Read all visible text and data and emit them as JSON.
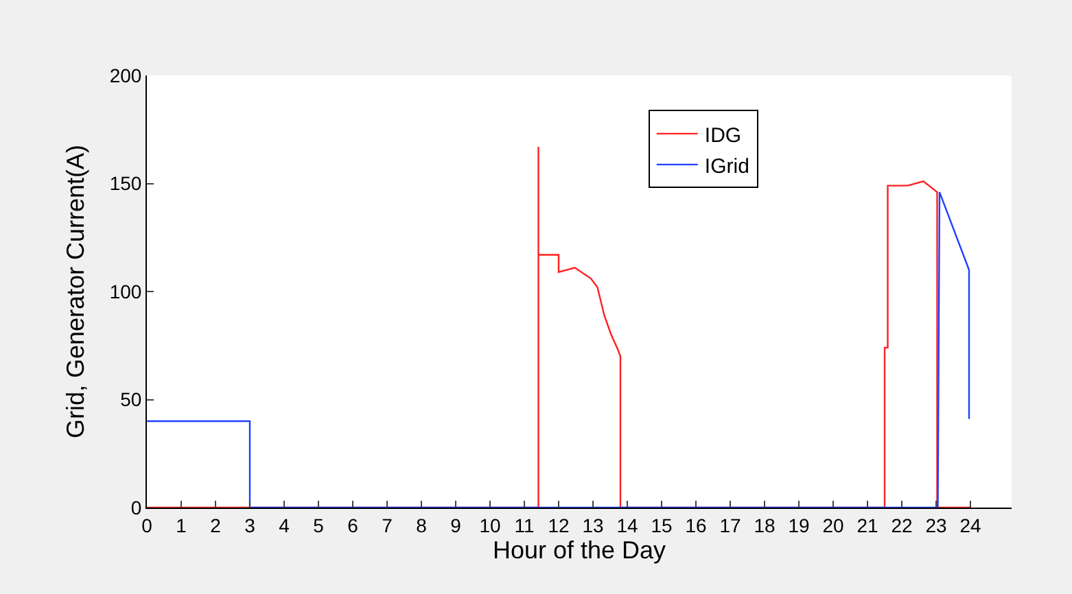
{
  "chart_data": {
    "type": "line",
    "xlabel": "Hour of the Day",
    "ylabel": "Grid, Generator Current(A)",
    "xlim": [
      0,
      25.2
    ],
    "xticks": [
      0,
      1,
      2,
      3,
      4,
      5,
      6,
      7,
      8,
      9,
      10,
      11,
      12,
      13,
      14,
      15,
      16,
      17,
      18,
      19,
      20,
      21,
      22,
      23,
      24
    ],
    "ylim": [
      0,
      200
    ],
    "yticks": [
      0,
      50,
      100,
      150,
      200
    ],
    "grid": false,
    "legend": "top right",
    "marker": "none",
    "line_style": "solid",
    "series": [
      {
        "name": "IDG",
        "color": "#ff2020",
        "x": [
          0,
          11.41,
          11.41,
          11.41,
          12.0,
          12.0,
          12.47,
          12.94,
          13.13,
          13.33,
          13.53,
          13.73,
          13.8,
          13.8,
          21.5,
          21.5,
          21.59,
          21.59,
          22.17,
          22.63,
          23.03,
          23.03,
          24
        ],
        "values": [
          0,
          0,
          167,
          117,
          117,
          109,
          111,
          106,
          102,
          89,
          80,
          73,
          70,
          0,
          0,
          74,
          74,
          149,
          149,
          151,
          146,
          0,
          0
        ]
      },
      {
        "name": "IGrid",
        "color": "#2040ff",
        "x": [
          0,
          3,
          3,
          23.05,
          23.1,
          23.96,
          23.96
        ],
        "values": [
          40,
          40,
          0,
          0,
          146,
          110,
          41
        ]
      }
    ]
  }
}
